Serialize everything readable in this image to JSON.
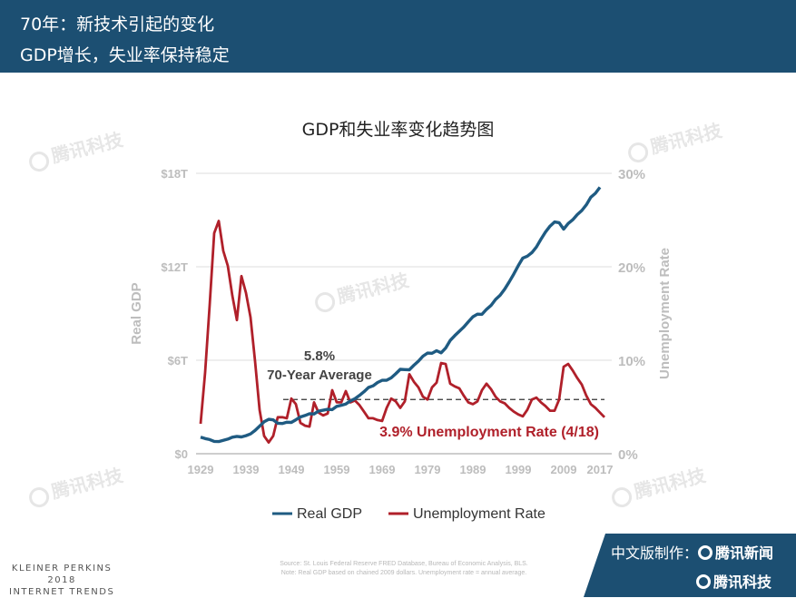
{
  "header": {
    "line1": "70年：新技术引起的变化",
    "line2": "GDP增长，失业率保持稳定"
  },
  "watermark": "腾讯科技",
  "footer": {
    "brand_line1": "KLEINER PERKINS",
    "brand_line2": "2018",
    "brand_line3": "INTERNET TRENDS",
    "source_line1": "Source: St. Louis Federal Reserve FRED Database, Bureau of Economic Analysis, BLS.",
    "source_line2": "Note: Real GDP based on chained 2009 dollars. Unemployment rate = annual average.",
    "badge_label": "中文版制作：",
    "badge_brand1": "腾讯新闻",
    "badge_brand2": "腾讯科技"
  },
  "chart_data": {
    "type": "line",
    "title": "GDP和失业率变化趋势图",
    "x_ticks": [
      "1929",
      "1939",
      "1949",
      "1959",
      "1969",
      "1979",
      "1989",
      "1999",
      "2009",
      "2017"
    ],
    "xlim": [
      1929,
      2018
    ],
    "y_left": {
      "label": "Real GDP",
      "ticks": [
        "$0",
        "$6T",
        "$12T",
        "$18T"
      ],
      "lim": [
        0,
        18
      ]
    },
    "y_right": {
      "label": "Unemployment Rate",
      "ticks": [
        "0%",
        "10%",
        "20%",
        "30%"
      ],
      "lim": [
        0,
        30
      ]
    },
    "grid": true,
    "legend_position": "bottom",
    "colors": {
      "gdp": "#1f5b82",
      "unemployment": "#b0202a",
      "average": "#333333"
    },
    "annotations": {
      "avg_value": "5.8%",
      "avg_label": "70-Year Average",
      "current_label": "3.9% Unemployment Rate (4/18)",
      "average_rate": 5.8
    },
    "series": [
      {
        "name": "Real GDP",
        "x": [
          1929,
          1930,
          1931,
          1932,
          1933,
          1934,
          1935,
          1936,
          1937,
          1938,
          1939,
          1940,
          1941,
          1942,
          1943,
          1944,
          1945,
          1946,
          1947,
          1948,
          1949,
          1950,
          1951,
          1952,
          1953,
          1954,
          1955,
          1956,
          1957,
          1958,
          1959,
          1960,
          1961,
          1962,
          1963,
          1964,
          1965,
          1966,
          1967,
          1968,
          1969,
          1970,
          1971,
          1972,
          1973,
          1974,
          1975,
          1976,
          1977,
          1978,
          1979,
          1980,
          1981,
          1982,
          1983,
          1984,
          1985,
          1986,
          1987,
          1988,
          1989,
          1990,
          1991,
          1992,
          1993,
          1994,
          1995,
          1996,
          1997,
          1998,
          1999,
          2000,
          2001,
          2002,
          2003,
          2004,
          2005,
          2006,
          2007,
          2008,
          2009,
          2010,
          2011,
          2012,
          2013,
          2014,
          2015,
          2016,
          2017
        ],
        "values": [
          1.06,
          0.97,
          0.91,
          0.79,
          0.78,
          0.86,
          0.94,
          1.06,
          1.11,
          1.08,
          1.16,
          1.27,
          1.49,
          1.77,
          2.05,
          2.21,
          2.17,
          1.96,
          1.94,
          2.02,
          2.01,
          2.18,
          2.36,
          2.45,
          2.57,
          2.55,
          2.74,
          2.79,
          2.85,
          2.83,
          3.04,
          3.11,
          3.19,
          3.39,
          3.53,
          3.74,
          3.98,
          4.25,
          4.36,
          4.57,
          4.71,
          4.72,
          4.87,
          5.13,
          5.42,
          5.4,
          5.39,
          5.68,
          5.94,
          6.26,
          6.46,
          6.45,
          6.61,
          6.48,
          6.78,
          7.27,
          7.58,
          7.86,
          8.13,
          8.47,
          8.79,
          8.96,
          8.95,
          9.27,
          9.52,
          9.9,
          10.17,
          10.56,
          11.03,
          11.53,
          12.07,
          12.56,
          12.68,
          12.91,
          13.27,
          13.77,
          14.23,
          14.61,
          14.88,
          14.83,
          14.42,
          14.78,
          15.02,
          15.35,
          15.61,
          15.98,
          16.47,
          16.72,
          17.1
        ]
      },
      {
        "name": "Unemployment Rate",
        "x": [
          1929,
          1930,
          1931,
          1932,
          1933,
          1934,
          1935,
          1936,
          1937,
          1938,
          1939,
          1940,
          1941,
          1942,
          1943,
          1944,
          1945,
          1946,
          1947,
          1948,
          1949,
          1950,
          1951,
          1952,
          1953,
          1954,
          1955,
          1956,
          1957,
          1958,
          1959,
          1960,
          1961,
          1962,
          1963,
          1964,
          1965,
          1966,
          1967,
          1968,
          1969,
          1970,
          1971,
          1972,
          1973,
          1974,
          1975,
          1976,
          1977,
          1978,
          1979,
          1980,
          1981,
          1982,
          1983,
          1984,
          1985,
          1986,
          1987,
          1988,
          1989,
          1990,
          1991,
          1992,
          1993,
          1994,
          1995,
          1996,
          1997,
          1998,
          1999,
          2000,
          2001,
          2002,
          2003,
          2004,
          2005,
          2006,
          2007,
          2008,
          2009,
          2010,
          2011,
          2012,
          2013,
          2014,
          2015,
          2016,
          2017,
          2018
        ],
        "values": [
          3.2,
          8.7,
          15.9,
          23.6,
          24.9,
          21.7,
          20.1,
          16.9,
          14.3,
          19.0,
          17.2,
          14.6,
          9.9,
          4.7,
          1.9,
          1.2,
          1.9,
          3.9,
          3.9,
          3.8,
          5.9,
          5.3,
          3.3,
          3.0,
          2.9,
          5.5,
          4.4,
          4.1,
          4.3,
          6.8,
          5.5,
          5.5,
          6.7,
          5.5,
          5.7,
          5.2,
          4.5,
          3.8,
          3.8,
          3.6,
          3.5,
          4.9,
          5.9,
          5.6,
          4.9,
          5.6,
          8.5,
          7.7,
          7.1,
          6.1,
          5.8,
          7.1,
          7.6,
          9.7,
          9.6,
          7.5,
          7.2,
          7.0,
          6.2,
          5.5,
          5.3,
          5.6,
          6.8,
          7.5,
          6.9,
          6.1,
          5.6,
          5.4,
          4.9,
          4.5,
          4.2,
          4.0,
          4.7,
          5.8,
          6.0,
          5.5,
          5.1,
          4.6,
          4.6,
          5.8,
          9.3,
          9.6,
          8.9,
          8.1,
          7.4,
          6.2,
          5.3,
          4.9,
          4.4,
          3.9
        ]
      }
    ]
  }
}
